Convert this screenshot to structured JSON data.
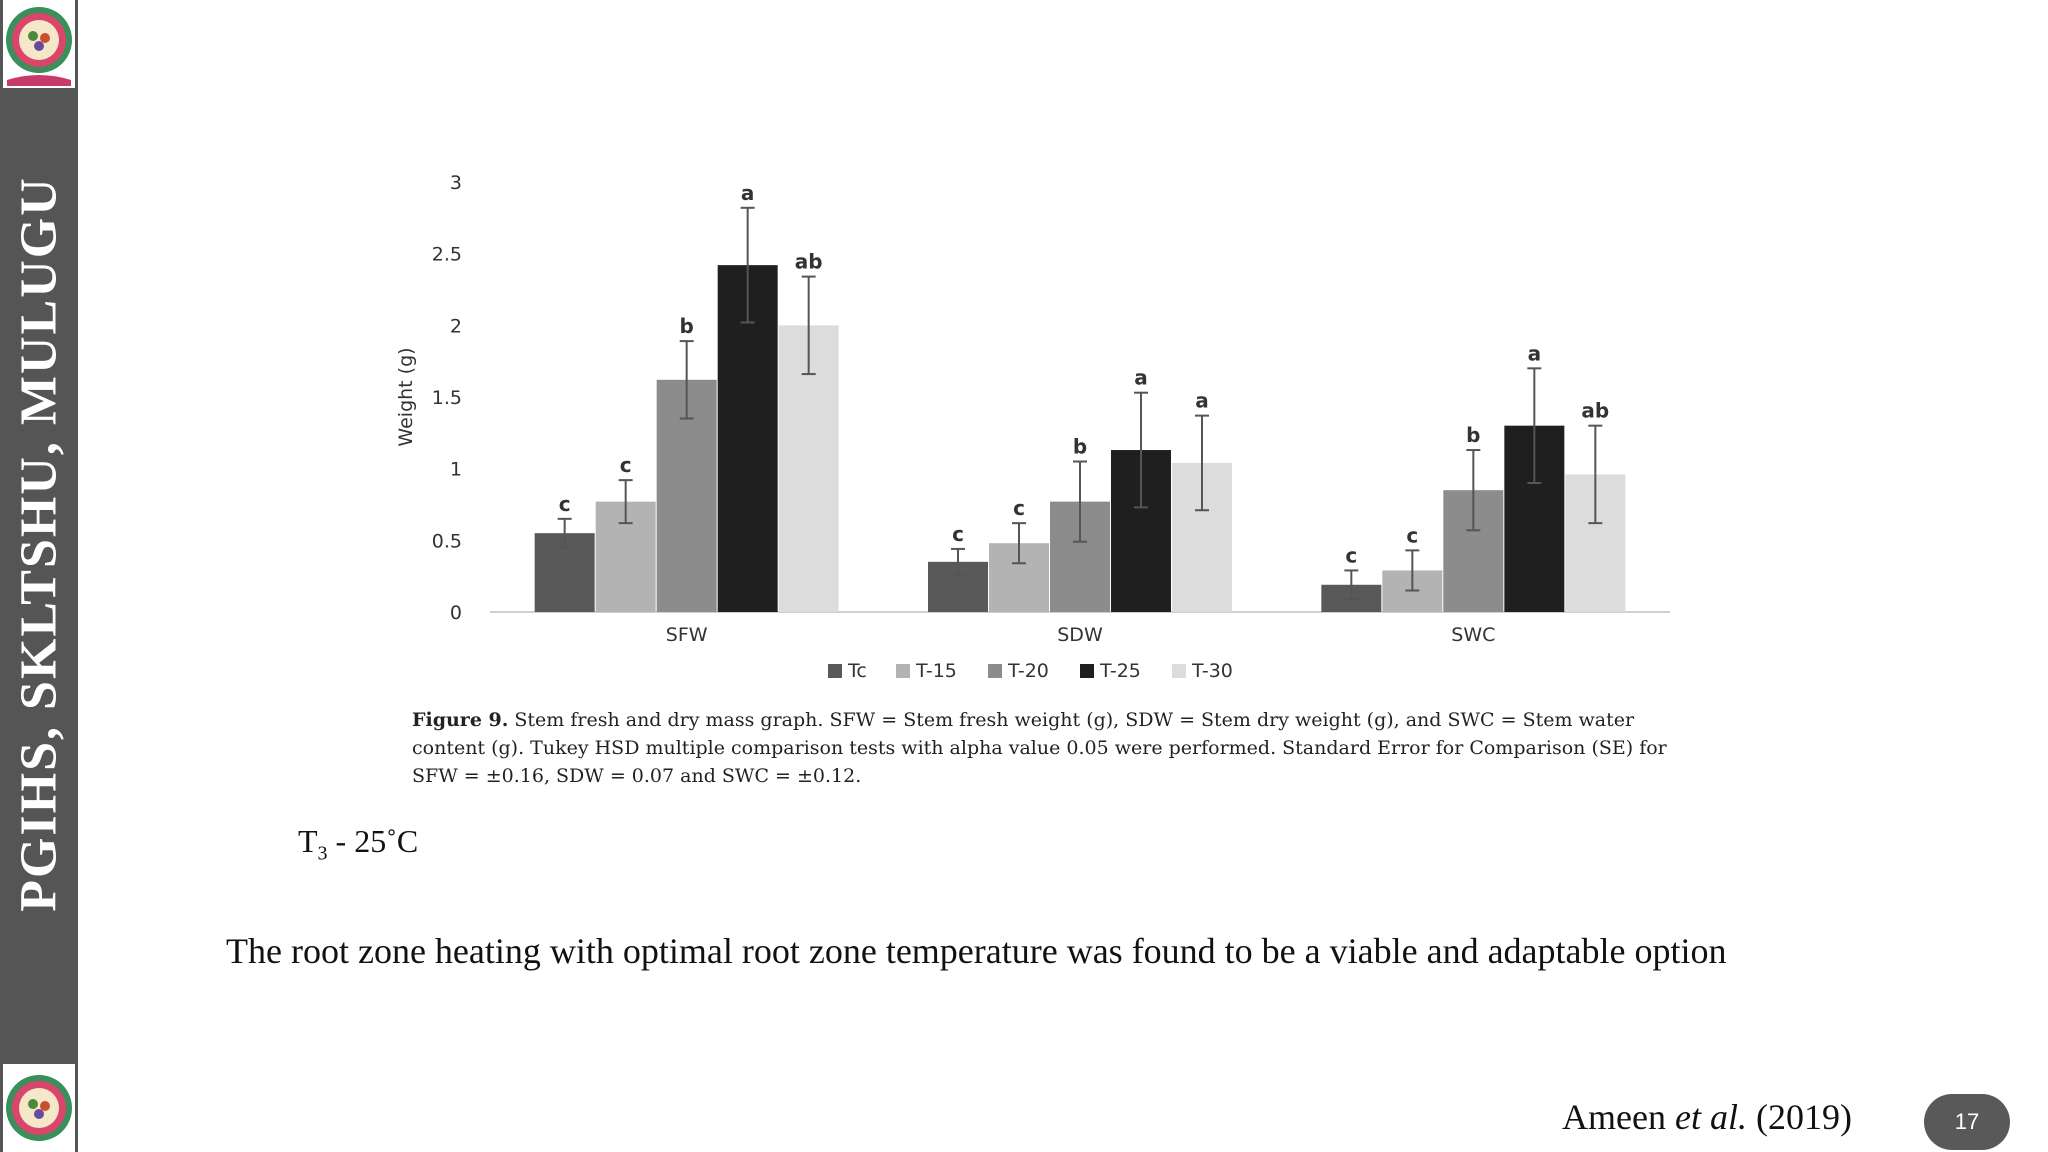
{
  "sidebar": {
    "title": "PGIHS, SKLTSHU, MULUGU",
    "logo_icon": "university-seal-icon"
  },
  "chart_data": {
    "type": "bar",
    "ylabel": "Weight (g)",
    "ylim": [
      0,
      3
    ],
    "yticks": [
      "0",
      "0.5",
      "1",
      "1.5",
      "2",
      "2.5",
      "3"
    ],
    "ytick_values": [
      0,
      0.5,
      1,
      1.5,
      2,
      2.5,
      3
    ],
    "categories": [
      "SFW",
      "SDW",
      "SWC"
    ],
    "legend_position": "bottom",
    "series": [
      {
        "name": "Tc",
        "color": "#595959",
        "values": [
          0.55,
          0.35,
          0.19
        ],
        "errors": [
          0.1,
          0.09,
          0.1
        ],
        "letters": [
          "c",
          "c",
          "c"
        ]
      },
      {
        "name": "T-15",
        "color": "#b3b3b3",
        "values": [
          0.77,
          0.48,
          0.29
        ],
        "errors": [
          0.15,
          0.14,
          0.14
        ],
        "letters": [
          "c",
          "c",
          "c"
        ]
      },
      {
        "name": "T-20",
        "color": "#8c8c8c",
        "values": [
          1.62,
          0.77,
          0.85
        ],
        "errors": [
          0.27,
          0.28,
          0.28
        ],
        "letters": [
          "b",
          "b",
          "b"
        ]
      },
      {
        "name": "T-25",
        "color": "#1f1f1f",
        "values": [
          2.42,
          1.13,
          1.3
        ],
        "errors": [
          0.4,
          0.4,
          0.4
        ],
        "letters": [
          "a",
          "a",
          "a"
        ]
      },
      {
        "name": "T-30",
        "color": "#dcdcdc",
        "values": [
          2.0,
          1.04,
          0.96
        ],
        "errors": [
          0.34,
          0.33,
          0.34
        ],
        "letters": [
          "ab",
          "a",
          "ab"
        ]
      }
    ]
  },
  "caption": {
    "label": "Figure 9.",
    "text": "Stem fresh and dry mass graph. SFW = Stem fresh weight (g), SDW = Stem dry weight (g), and SWC = Stem water content (g). Tukey HSD multiple comparison tests with alpha value 0.05 were performed. Standard Error for Comparison (SE) for SFW = ±0.16, SDW = 0.07 and SWC = ±0.12."
  },
  "temperature": {
    "prefix": "T",
    "subscript": "3",
    "suffix": " - 25˚C"
  },
  "conclusion": "The root zone heating with optimal root zone temperature was found to be a viable and adaptable option",
  "citation": {
    "author": "Ameen ",
    "etal": "et al.",
    "year": " (2019)"
  },
  "page_number": "17"
}
